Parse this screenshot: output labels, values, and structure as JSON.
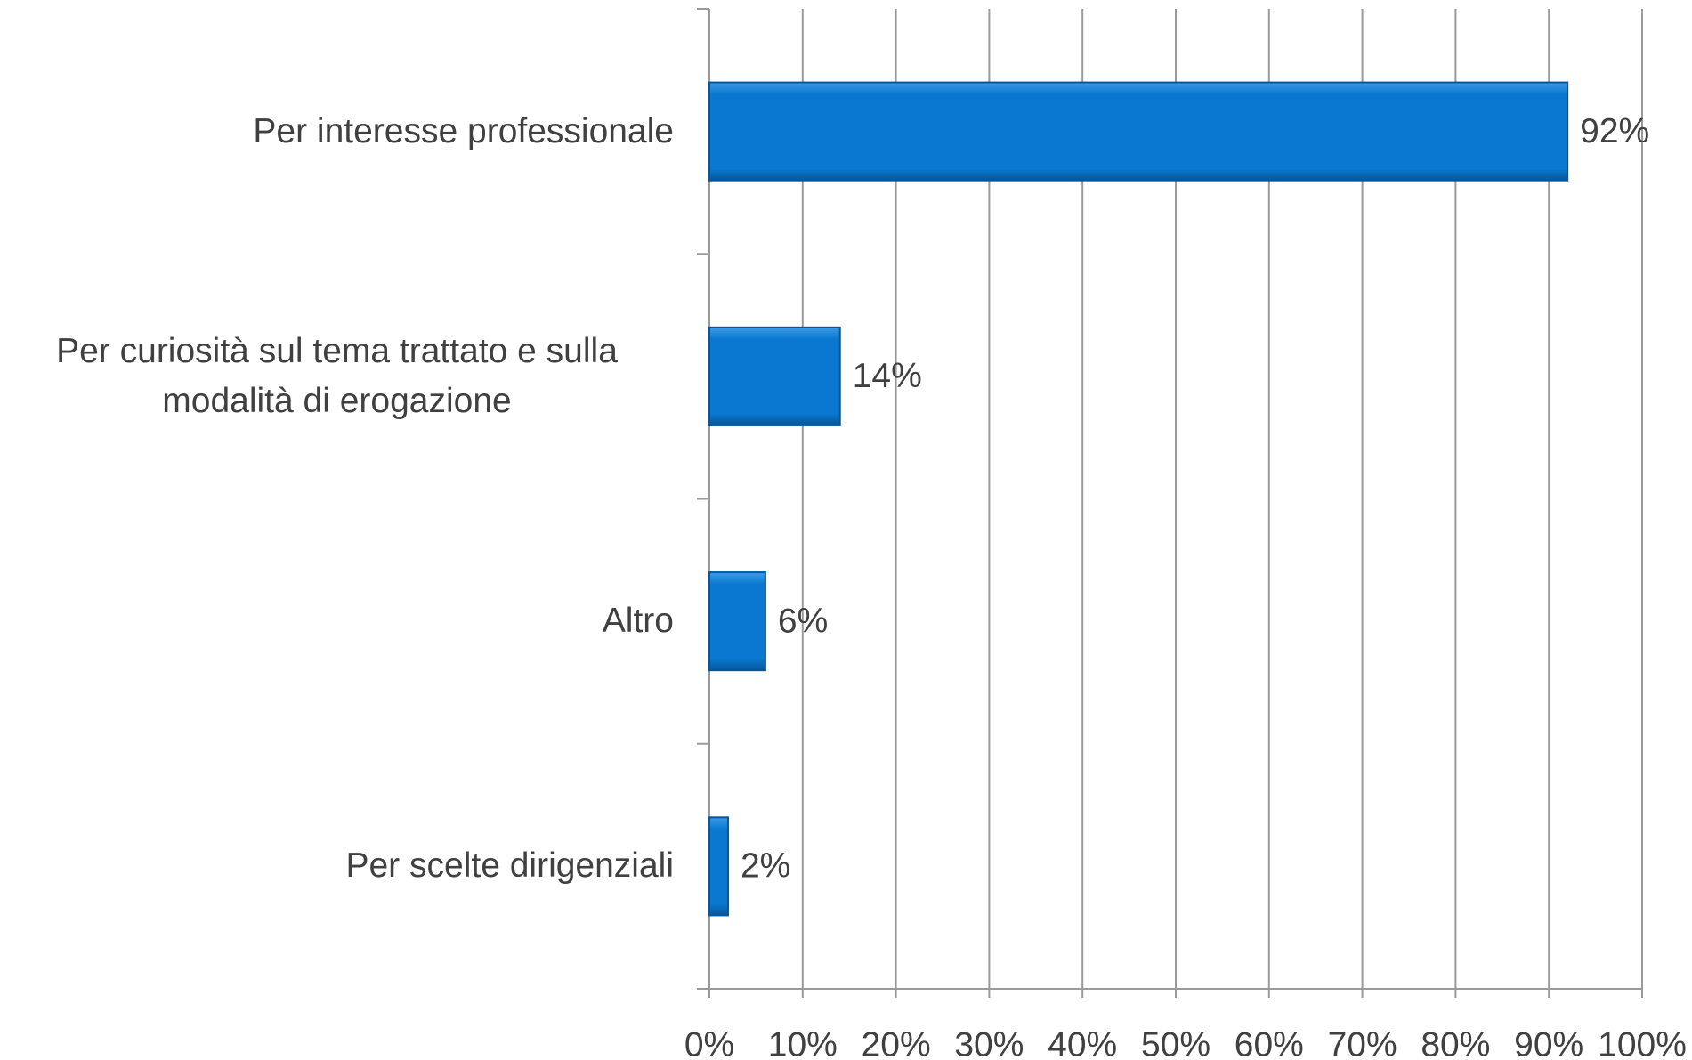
{
  "chart_data": {
    "type": "bar",
    "orientation": "horizontal",
    "categories": [
      "Per interesse professionale",
      "Per curiosità  sul tema trattato e sulla modalità  di erogazione",
      "Altro",
      "Per scelte dirigenziali"
    ],
    "values": [
      92,
      14,
      6,
      2
    ],
    "value_labels": [
      "92%",
      "14%",
      "6%",
      "2%"
    ],
    "color": "#0a78d0",
    "xlim": [
      0,
      100
    ],
    "xticks": [
      {
        "value": 0,
        "label": "0%"
      },
      {
        "value": 10,
        "label": "10%"
      },
      {
        "value": 20,
        "label": "20%"
      },
      {
        "value": 30,
        "label": "30%"
      },
      {
        "value": 40,
        "label": "40%"
      },
      {
        "value": 50,
        "label": "50%"
      },
      {
        "value": 60,
        "label": "60%"
      },
      {
        "value": 70,
        "label": "70%"
      },
      {
        "value": 80,
        "label": "80%"
      },
      {
        "value": 90,
        "label": "90%"
      },
      {
        "value": 100,
        "label": "100%"
      }
    ],
    "grid": true
  }
}
